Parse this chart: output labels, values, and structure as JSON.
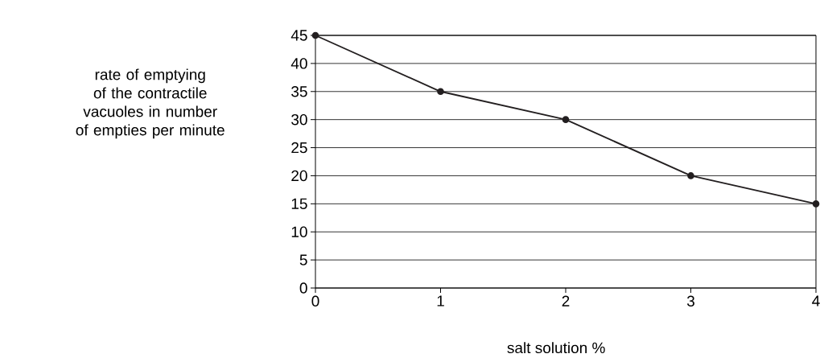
{
  "chart_data": {
    "type": "line",
    "xlabel": "salt solution %",
    "ylabel": "rate of emptying of the contractile vacuoles in number of empties per minute",
    "x": [
      0,
      1,
      2,
      3,
      4
    ],
    "series": [
      {
        "color": "#231f20",
        "values": [
          45,
          35,
          30,
          20,
          15
        ]
      }
    ],
    "xlim": [
      0,
      4
    ],
    "xticks": [
      0,
      1,
      2,
      3,
      4
    ],
    "ylim": [
      0,
      45
    ],
    "yticks": [
      0,
      5,
      10,
      15,
      20,
      25,
      30,
      35,
      40,
      45
    ],
    "grid": "y",
    "marker": "circle",
    "line_style": "solid"
  }
}
